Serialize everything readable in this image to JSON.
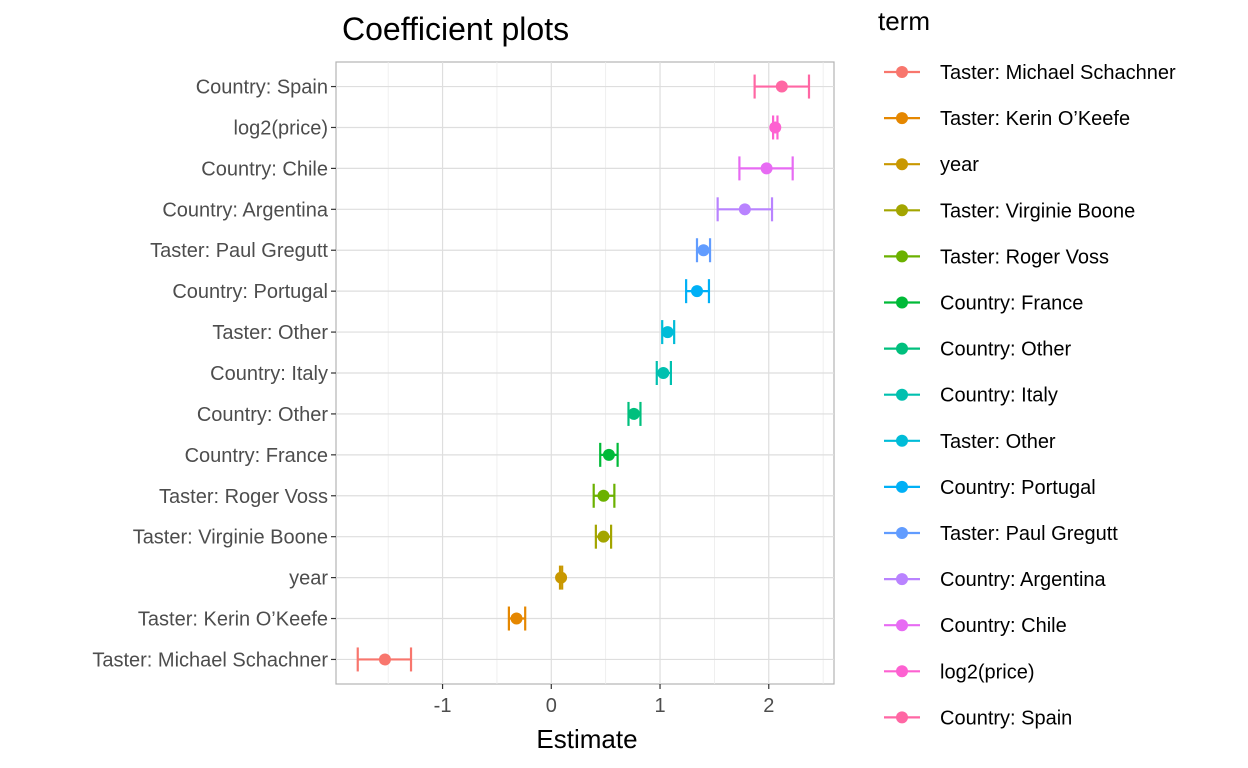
{
  "chart_data": {
    "type": "scatter",
    "title": "Coefficient plots",
    "xlabel": "Estimate",
    "ylabel": "",
    "xlim": [
      -1.98,
      2.6
    ],
    "x_ticks": [
      -1,
      0,
      1,
      2
    ],
    "x_tick_labels": [
      "-1",
      "0",
      "1",
      "2"
    ],
    "grid": true,
    "legend_title": "term",
    "legend_position": "right",
    "terms": [
      {
        "name": "Taster: Michael Schachner",
        "estimate": -1.53,
        "low": -1.78,
        "high": -1.29,
        "color": "#F8766D"
      },
      {
        "name": "Taster: Kerin O’Keefe",
        "estimate": -0.32,
        "low": -0.39,
        "high": -0.24,
        "color": "#E58700"
      },
      {
        "name": "year",
        "estimate": 0.09,
        "low": 0.08,
        "high": 0.1,
        "color": "#C99800"
      },
      {
        "name": "Taster: Virginie Boone",
        "estimate": 0.48,
        "low": 0.41,
        "high": 0.55,
        "color": "#A3A500"
      },
      {
        "name": "Taster: Roger Voss",
        "estimate": 0.48,
        "low": 0.39,
        "high": 0.58,
        "color": "#6BB100"
      },
      {
        "name": "Country: France",
        "estimate": 0.53,
        "low": 0.45,
        "high": 0.61,
        "color": "#00BA38"
      },
      {
        "name": "Country: Other",
        "estimate": 0.76,
        "low": 0.71,
        "high": 0.82,
        "color": "#00BF7D"
      },
      {
        "name": "Country: Italy",
        "estimate": 1.03,
        "low": 0.97,
        "high": 1.1,
        "color": "#00C0AF"
      },
      {
        "name": "Taster: Other",
        "estimate": 1.07,
        "low": 1.02,
        "high": 1.13,
        "color": "#00BCD8"
      },
      {
        "name": "Country: Portugal",
        "estimate": 1.34,
        "low": 1.24,
        "high": 1.45,
        "color": "#00B0F6"
      },
      {
        "name": "Taster: Paul Gregutt",
        "estimate": 1.4,
        "low": 1.34,
        "high": 1.46,
        "color": "#619CFF"
      },
      {
        "name": "Country: Argentina",
        "estimate": 1.78,
        "low": 1.53,
        "high": 2.03,
        "color": "#B983FF"
      },
      {
        "name": "Country: Chile",
        "estimate": 1.98,
        "low": 1.73,
        "high": 2.22,
        "color": "#E76BF3"
      },
      {
        "name": "log2(price)",
        "estimate": 2.06,
        "low": 2.04,
        "high": 2.08,
        "color": "#FD61D1"
      },
      {
        "name": "Country: Spain",
        "estimate": 2.12,
        "low": 1.87,
        "high": 2.37,
        "color": "#FF67A4"
      }
    ]
  }
}
